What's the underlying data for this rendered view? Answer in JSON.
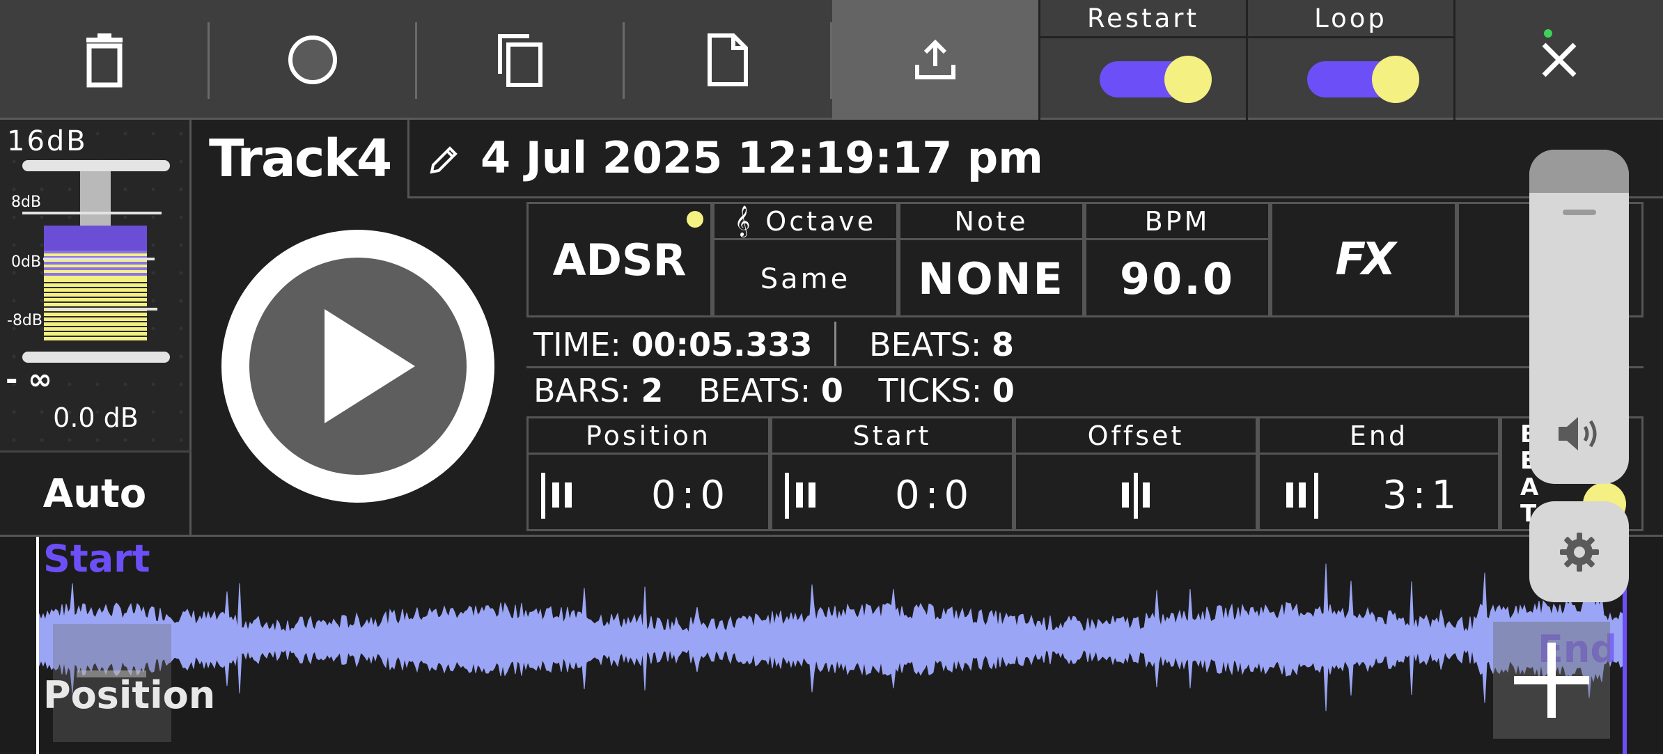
{
  "toolbar": {
    "restart_label": "Restart",
    "loop_label": "Loop",
    "restart_on": true,
    "loop_on": true
  },
  "fader": {
    "top_label": "16dB",
    "marks": [
      "8dB",
      "0dB",
      "-8dB"
    ],
    "bottom_label": "- ∞",
    "value": "0.0 dB",
    "auto_label": "Auto"
  },
  "track": {
    "name": "Track4",
    "date": "4 Jul 2025 12:19:17 pm"
  },
  "params": {
    "adsr": "ADSR",
    "octave_label": "Octave",
    "octave_value": "Same",
    "note_label": "Note",
    "note_value": "NONE",
    "bpm_label": "BPM",
    "bpm_value": "90.0",
    "fx_label": "FX"
  },
  "timing": {
    "time_label": "TIME:",
    "time_value": "00:05.333",
    "beats_label": "BEATS:",
    "beats_value": "8",
    "bars_label": "BARS:",
    "bars_value": "2",
    "beats2_label": "BEATS:",
    "beats2_value": "0",
    "ticks_label": "TICKS:",
    "ticks_value": "0"
  },
  "positions": {
    "position_label": "Position",
    "position_value": "0:0",
    "start_label": "Start",
    "start_value": "0:0",
    "offset_label": "Offset",
    "end_label": "End",
    "end_value": "3:1",
    "beat_letters": [
      "B",
      "E",
      "A",
      "T"
    ]
  },
  "waveform": {
    "start_label": "Start",
    "position_label": "Position",
    "end_label": "End"
  },
  "colors": {
    "accent": "#6c4ff7",
    "knob": "#f4f081",
    "wave": "#9aa5f5"
  }
}
